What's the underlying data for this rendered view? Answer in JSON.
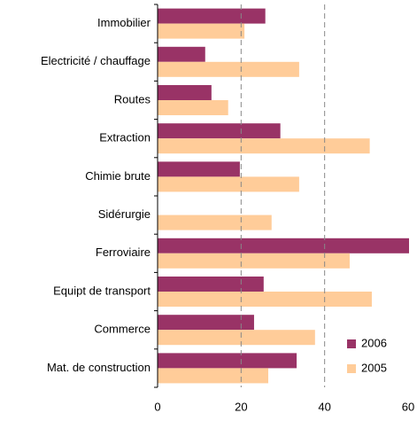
{
  "chart_data": {
    "type": "hbar",
    "categories": [
      "Immobilier",
      "Electricité / chauffage",
      "Routes",
      "Extraction",
      "Chimie brute",
      "Sidérurgie",
      "Ferroviaire",
      "Equipt de transport",
      "Commerce",
      "Mat. de construction"
    ],
    "series": [
      {
        "name": "2006",
        "color": "#993366",
        "values": [
          25.8,
          11.4,
          12.9,
          29.4,
          19.7,
          null,
          61,
          25.4,
          23.1,
          33.3
        ]
      },
      {
        "name": "2005",
        "color": "#ffcc99",
        "values": [
          20.8,
          33.9,
          16.9,
          50.8,
          33.9,
          27.3,
          46,
          51.3,
          37.7,
          26.5
        ]
      }
    ],
    "xlim": [
      0,
      60
    ],
    "xticks": [
      0,
      20,
      40,
      60
    ],
    "grid": true,
    "legend": "lower right"
  }
}
